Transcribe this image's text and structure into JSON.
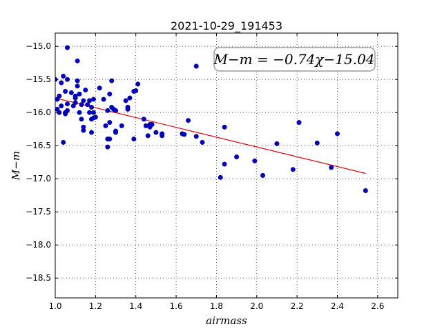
{
  "chart_data": {
    "type": "scatter",
    "title": "2021-10-29_191453",
    "xlabel": "airmass",
    "ylabel": "M−m",
    "xlim": [
      1.0,
      2.7
    ],
    "ylim": [
      -18.8,
      -14.8
    ],
    "x_ticks": [
      1.0,
      1.2,
      1.4,
      1.6,
      1.8,
      2.0,
      2.2,
      2.4,
      2.6
    ],
    "x_tick_labels": [
      "1.0",
      "1.2",
      "1.4",
      "1.6",
      "1.8",
      "2.0",
      "2.2",
      "2.4",
      "2.6"
    ],
    "y_ticks": [
      -15.0,
      -15.5,
      -16.0,
      -16.5,
      -17.0,
      -17.5,
      -18.0,
      -18.5
    ],
    "y_tick_labels": [
      "−15.0",
      "−15.5",
      "−16.0",
      "−16.5",
      "−17.0",
      "−17.5",
      "−18.0",
      "−18.5"
    ],
    "grid": true,
    "annotation": "M−m = −0.74χ−15.04",
    "annotation_placement": "top-right",
    "colors": {
      "points": "#0000cc",
      "fit_line": "#dd0000"
    },
    "fit": {
      "slope": -0.74,
      "intercept": -15.04,
      "x_range": [
        1.0,
        2.54
      ]
    },
    "points": [
      [
        1.0,
        -15.5
      ],
      [
        1.01,
        -15.8
      ],
      [
        1.01,
        -15.95
      ],
      [
        1.02,
        -15.75
      ],
      [
        1.02,
        -16.0
      ],
      [
        1.03,
        -15.9
      ],
      [
        1.03,
        -15.55
      ],
      [
        1.04,
        -16.45
      ],
      [
        1.04,
        -15.45
      ],
      [
        1.05,
        -15.68
      ],
      [
        1.05,
        -16.0
      ],
      [
        1.05,
        -16.02
      ],
      [
        1.06,
        -15.5
      ],
      [
        1.06,
        -15.87
      ],
      [
        1.06,
        -15.97
      ],
      [
        1.06,
        -15.02
      ],
      [
        1.08,
        -15.7
      ],
      [
        1.09,
        -15.9
      ],
      [
        1.1,
        -15.85
      ],
      [
        1.1,
        -15.78
      ],
      [
        1.1,
        -15.75
      ],
      [
        1.11,
        -15.52
      ],
      [
        1.11,
        -15.6
      ],
      [
        1.11,
        -15.22
      ],
      [
        1.12,
        -15.72
      ],
      [
        1.12,
        -16.0
      ],
      [
        1.13,
        -15.88
      ],
      [
        1.13,
        -16.1
      ],
      [
        1.14,
        -16.27
      ],
      [
        1.14,
        -16.22
      ],
      [
        1.14,
        -15.82
      ],
      [
        1.15,
        -15.66
      ],
      [
        1.16,
        -15.88
      ],
      [
        1.17,
        -15.82
      ],
      [
        1.17,
        -16.0
      ],
      [
        1.18,
        -16.1
      ],
      [
        1.18,
        -15.92
      ],
      [
        1.18,
        -16.3
      ],
      [
        1.19,
        -15.8
      ],
      [
        1.19,
        -16.0
      ],
      [
        1.19,
        -16.08
      ],
      [
        1.2,
        -16.07
      ],
      [
        1.22,
        -15.63
      ],
      [
        1.24,
        -15.8
      ],
      [
        1.25,
        -16.2
      ],
      [
        1.26,
        -15.97
      ],
      [
        1.26,
        -16.4
      ],
      [
        1.26,
        -16.52
      ],
      [
        1.27,
        -16.4
      ],
      [
        1.27,
        -16.15
      ],
      [
        1.27,
        -15.72
      ],
      [
        1.28,
        -15.92
      ],
      [
        1.28,
        -15.52
      ],
      [
        1.29,
        -15.95
      ],
      [
        1.3,
        -16.3
      ],
      [
        1.3,
        -16.28
      ],
      [
        1.3,
        -15.97
      ],
      [
        1.33,
        -16.2
      ],
      [
        1.35,
        -15.82
      ],
      [
        1.36,
        -15.95
      ],
      [
        1.36,
        -15.92
      ],
      [
        1.37,
        -15.78
      ],
      [
        1.39,
        -15.68
      ],
      [
        1.39,
        -16.4
      ],
      [
        1.4,
        -15.67
      ],
      [
        1.41,
        -15.57
      ],
      [
        1.44,
        -16.1
      ],
      [
        1.45,
        -16.2
      ],
      [
        1.46,
        -16.35
      ],
      [
        1.47,
        -16.22
      ],
      [
        1.47,
        -16.18
      ],
      [
        1.48,
        -16.18
      ],
      [
        1.5,
        -16.3
      ],
      [
        1.53,
        -16.35
      ],
      [
        1.53,
        -16.32
      ],
      [
        1.63,
        -16.32
      ],
      [
        1.64,
        -16.33
      ],
      [
        1.66,
        -16.12
      ],
      [
        1.7,
        -15.3
      ],
      [
        1.7,
        -16.36
      ],
      [
        1.73,
        -16.45
      ],
      [
        1.82,
        -16.98
      ],
      [
        1.84,
        -16.22
      ],
      [
        1.84,
        -16.78
      ],
      [
        1.9,
        -16.67
      ],
      [
        1.99,
        -16.73
      ],
      [
        2.03,
        -16.95
      ],
      [
        2.1,
        -16.47
      ],
      [
        2.18,
        -16.86
      ],
      [
        2.21,
        -16.15
      ],
      [
        2.3,
        -16.46
      ],
      [
        2.37,
        -16.83
      ],
      [
        2.4,
        -16.32
      ],
      [
        2.54,
        -17.18
      ]
    ]
  }
}
